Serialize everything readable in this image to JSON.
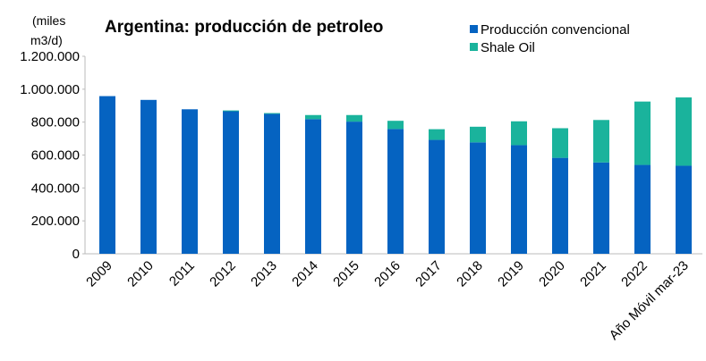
{
  "chart_data": {
    "type": "bar",
    "stacked": true,
    "title": "Argentina: producción de petroleo",
    "y_label_lines": [
      "(miles",
      "m3/d)"
    ],
    "categories": [
      "2009",
      "2010",
      "2011",
      "2012",
      "2013",
      "2014",
      "2015",
      "2016",
      "2017",
      "2018",
      "2019",
      "2020",
      "2021",
      "2022",
      "Año Móvil mar-23"
    ],
    "series": [
      {
        "name": "Producción convencional",
        "color": "#0563c1",
        "values": [
          958000,
          935000,
          878000,
          866000,
          850000,
          818000,
          803000,
          758000,
          692000,
          677000,
          660000,
          583000,
          555000,
          540000,
          535000
        ]
      },
      {
        "name": "Shale Oil",
        "color": "#1ab39c",
        "values": [
          0,
          0,
          0,
          5000,
          5000,
          25000,
          40000,
          50000,
          65000,
          95000,
          145000,
          180000,
          258000,
          385000,
          415000
        ]
      }
    ],
    "ylim": [
      0,
      1200000
    ],
    "yticks": [
      0,
      {
        "value": 200000,
        "label": "200.000"
      },
      {
        "value": 400000,
        "label": "400.000"
      },
      {
        "value": 600000,
        "label": "600.000"
      },
      {
        "value": 800000,
        "label": "800.000"
      },
      {
        "value": 1000000,
        "label": "1.000.000"
      },
      {
        "value": 1200000,
        "label": "1.200.000"
      }
    ],
    "grid": false,
    "legend": "top-right"
  }
}
